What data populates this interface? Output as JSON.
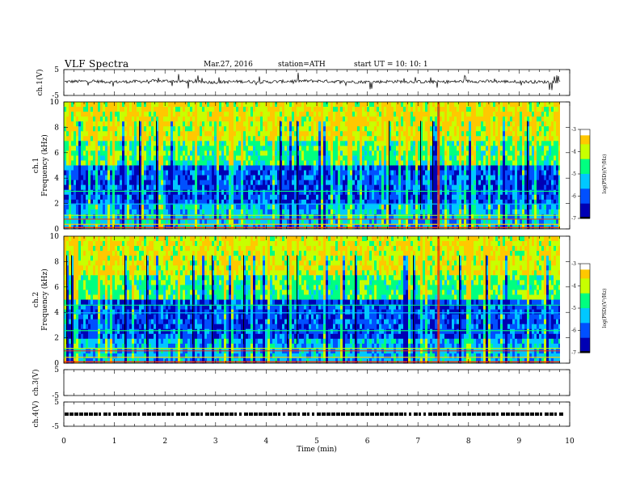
{
  "header": {
    "title": "VLF  Spectra",
    "date": "Mar.27, 2016",
    "station": "station=ATH",
    "start": "start  UT  =    10: 10: 1"
  },
  "chart_data": [
    {
      "type": "line",
      "panel": "ch1-waveform",
      "ylabel": "ch.1(V)",
      "ylim": [
        -5,
        5
      ],
      "yticks": [
        "5",
        "-5"
      ],
      "xlim": [
        0,
        10
      ],
      "series": [
        {
          "x": [
            0,
            0.5,
            1,
            1.5,
            2,
            2.5,
            3,
            3.5,
            4,
            4.5,
            5,
            5.5,
            6,
            6.5,
            7,
            7.5,
            8,
            8.5,
            9,
            9.5,
            9.8
          ],
          "values": [
            0.3,
            0.5,
            0.2,
            0.4,
            0.6,
            0.3,
            0.1,
            0.4,
            0.2,
            0.5,
            0.6,
            0.3,
            0.2,
            0.4,
            0.3,
            0.2,
            0.5,
            0.4,
            0.3,
            0.2,
            0.3
          ]
        }
      ]
    },
    {
      "type": "heatmap",
      "panel": "ch1-spectrogram",
      "ylabel": "ch.1\nFrequency  (kHz)",
      "yticks": [
        "10",
        "8",
        "6",
        "4",
        "2",
        "0"
      ],
      "ylim": [
        0,
        10
      ],
      "xlim": [
        0,
        9.8
      ],
      "colorbar": {
        "label": "log(PSD)(V²/Hz)",
        "ticks": [
          "-3",
          "-4",
          "-5",
          "-6",
          "-7"
        ],
        "range": [
          -7,
          -3
        ]
      }
    },
    {
      "type": "heatmap",
      "panel": "ch2-spectrogram",
      "ylabel": "ch.2\nFrequency  (kHz)",
      "yticks": [
        "10",
        "8",
        "6",
        "4",
        "2",
        "0"
      ],
      "ylim": [
        0,
        10
      ],
      "xlim": [
        0,
        9.8
      ],
      "colorbar": {
        "label": "log(PSD)(V²/Hz)",
        "ticks": [
          "-3",
          "-4",
          "-5",
          "-6",
          "-7"
        ],
        "range": [
          -7,
          -3
        ]
      }
    },
    {
      "type": "line",
      "panel": "ch3-waveform",
      "ylabel": "ch.3(V)",
      "yticks": [
        "5",
        "-5"
      ],
      "ylim": [
        -5,
        5
      ],
      "series": []
    },
    {
      "type": "line",
      "panel": "ch4-waveform",
      "ylabel": "ch.4(V)",
      "yticks": [
        "5",
        "-5"
      ],
      "ylim": [
        -5,
        5
      ],
      "series": [
        {
          "x": [
            0,
            9.8
          ],
          "values": [
            0,
            0
          ]
        }
      ]
    }
  ],
  "xaxis": {
    "label": "Time  (min)",
    "ticks": [
      "0",
      "1",
      "2",
      "3",
      "4",
      "5",
      "6",
      "7",
      "8",
      "9",
      "10"
    ]
  },
  "colors": {
    "background": "#ffffff",
    "axis": "#000000",
    "colormap": [
      "#0000b4",
      "#0050ff",
      "#00c8ff",
      "#00ff80",
      "#c8ff00",
      "#ffc800",
      "#ff3000"
    ]
  }
}
